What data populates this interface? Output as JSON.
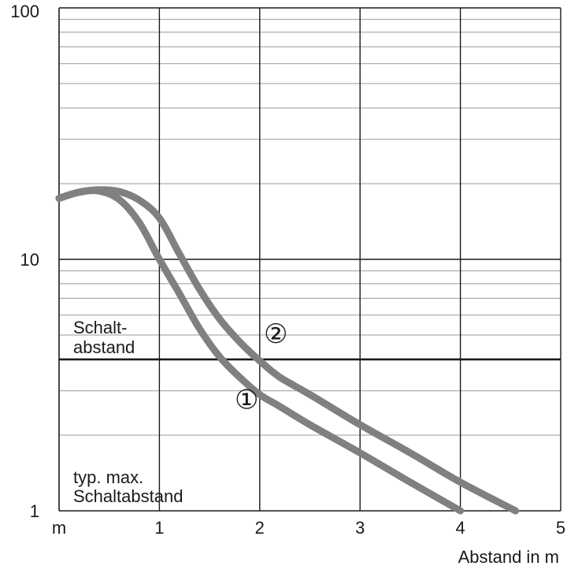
{
  "chart_data": {
    "type": "line",
    "xlabel": "Abstand in m",
    "x_unit_label": "m",
    "ylabel": "",
    "xlim": [
      0,
      5
    ],
    "ylim": [
      1,
      100
    ],
    "y_scale": "log",
    "grid": true,
    "x_ticks": [
      {
        "value": 1,
        "label": "1"
      },
      {
        "value": 2,
        "label": "2"
      },
      {
        "value": 3,
        "label": "3"
      },
      {
        "value": 4,
        "label": "4"
      },
      {
        "value": 5,
        "label": "5"
      }
    ],
    "y_ticks": [
      {
        "value": 1,
        "label": "1"
      },
      {
        "value": 10,
        "label": "10"
      },
      {
        "value": 100,
        "label": "100"
      }
    ],
    "threshold": {
      "value": 4,
      "label_line1": "Schalt-",
      "label_line2": "abstand"
    },
    "annotation": {
      "line1": "typ. max.",
      "line2": "Schaltabstand"
    },
    "series": [
      {
        "marker": "①",
        "x": [
          0,
          0.2,
          0.4,
          0.6,
          0.8,
          1.0,
          1.2,
          1.4,
          1.6,
          1.8,
          2.0,
          2.2,
          2.5,
          3.0,
          3.5,
          4.0
        ],
        "y": [
          17.5,
          18.5,
          18.7,
          17.3,
          14.0,
          10.0,
          7.3,
          5.3,
          4.1,
          3.4,
          2.9,
          2.6,
          2.2,
          1.7,
          1.3,
          1.0
        ]
      },
      {
        "marker": "②",
        "x": [
          0,
          0.2,
          0.4,
          0.6,
          0.8,
          1.0,
          1.2,
          1.4,
          1.6,
          1.8,
          2.0,
          2.2,
          2.5,
          3.0,
          3.5,
          4.0,
          4.55
        ],
        "y": [
          17.5,
          18.5,
          18.9,
          18.6,
          17.2,
          14.6,
          10.5,
          7.6,
          5.8,
          4.7,
          3.95,
          3.4,
          2.9,
          2.2,
          1.7,
          1.3,
          1.0
        ]
      }
    ],
    "colors": {
      "curve": "#808080",
      "grid_major": "#1a1a1a",
      "grid_minor": "#9a9a9a",
      "threshold": "#1a1a1a",
      "background": "#ffffff"
    }
  }
}
